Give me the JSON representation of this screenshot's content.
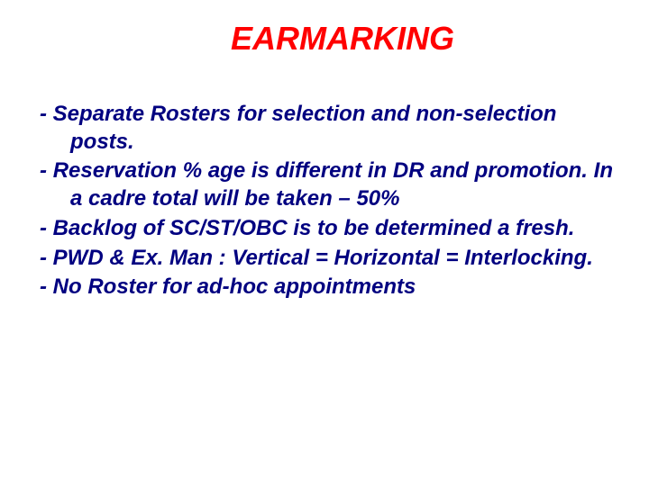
{
  "title": {
    "text": "EARMARKING",
    "color": "#ff0000",
    "fontsize": 36
  },
  "body": {
    "color": "#000080",
    "fontsize": 24,
    "items": [
      {
        "text": "-  Separate Rosters for selection and non-selection posts.",
        "justify": false
      },
      {
        "text": "- Reservation % age is different in DR and promotion.  In a cadre total will be taken – 50%",
        "justify": true
      },
      {
        "text": "-  Backlog of SC/ST/OBC is to be determined a fresh.",
        "justify": true
      },
      {
        "text": "- PWD & Ex. Man :  Vertical = Horizontal = Interlocking.",
        "justify": true
      },
      {
        "text": "-  No Roster for ad-hoc appointments",
        "justify": false
      }
    ]
  }
}
